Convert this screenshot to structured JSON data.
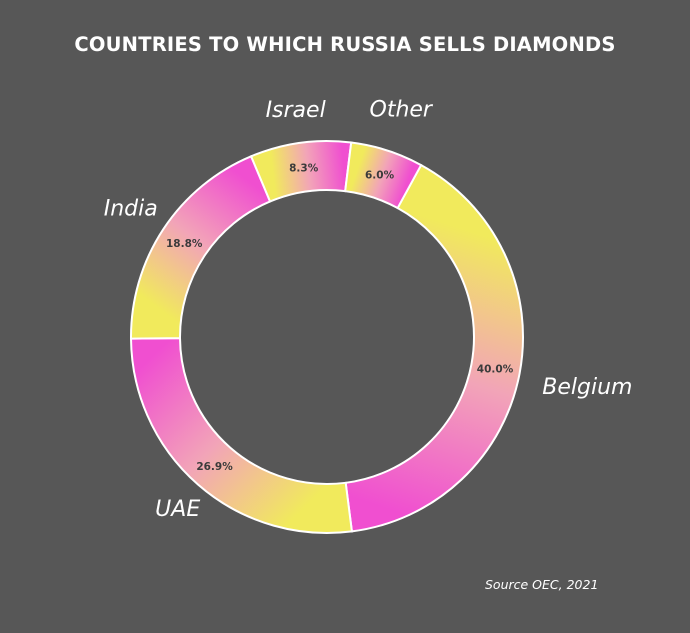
{
  "chart_data": {
    "type": "donut",
    "title": "COUNTRIES TO WHICH RUSSIA SELLS DIAMONDS",
    "categories": [
      "Belgium",
      "UAE",
      "India",
      "Israel",
      "Other"
    ],
    "values": [
      40.0,
      26.9,
      18.8,
      8.3,
      6.0
    ],
    "value_labels": [
      "40.0%",
      "26.9%",
      "18.8%",
      "8.3%",
      "6.0%"
    ],
    "unit": "%",
    "legend": "none",
    "colors": {
      "background": "#575757",
      "gradient_start": "#f1ea5c",
      "gradient_mid": "#f2a4b8",
      "gradient_end": "#f04fd0",
      "slice_border": "#ffffff",
      "category_text": "#ffffff",
      "value_text": "#3b3b3b"
    }
  },
  "source_note": "Source OEC, 2021"
}
